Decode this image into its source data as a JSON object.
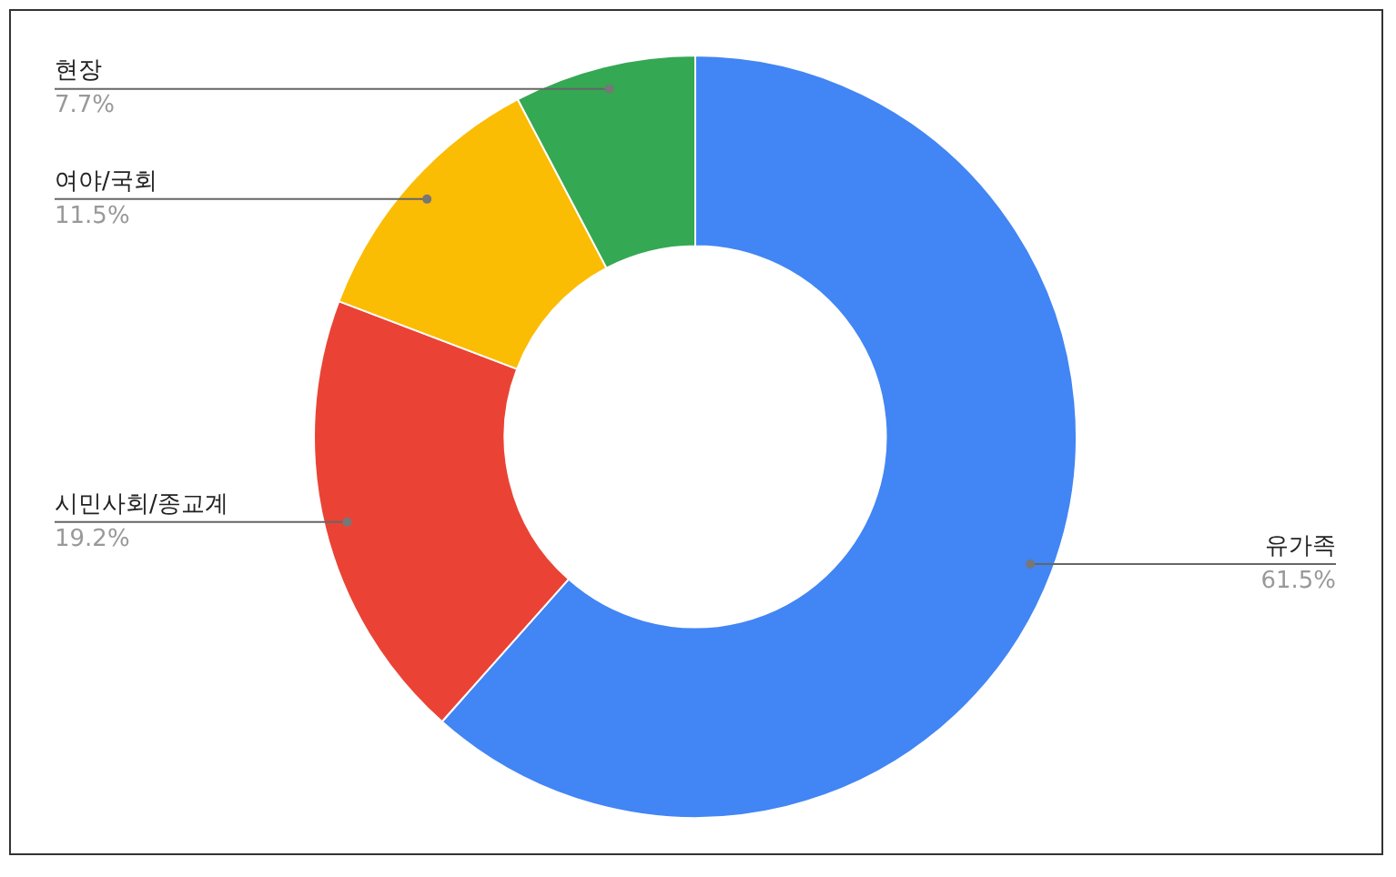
{
  "chart_data": {
    "type": "donut",
    "categories": [
      "유가족",
      "시민사회/종교계",
      "여야/국회",
      "현장"
    ],
    "values": [
      61.5,
      19.2,
      11.5,
      7.7
    ],
    "colors": [
      "#4285f4",
      "#ea4335",
      "#fbbc04",
      "#34a853"
    ],
    "value_labels": [
      "61.5%",
      "19.2%",
      "11.5%",
      "7.7%"
    ],
    "legend": false
  }
}
